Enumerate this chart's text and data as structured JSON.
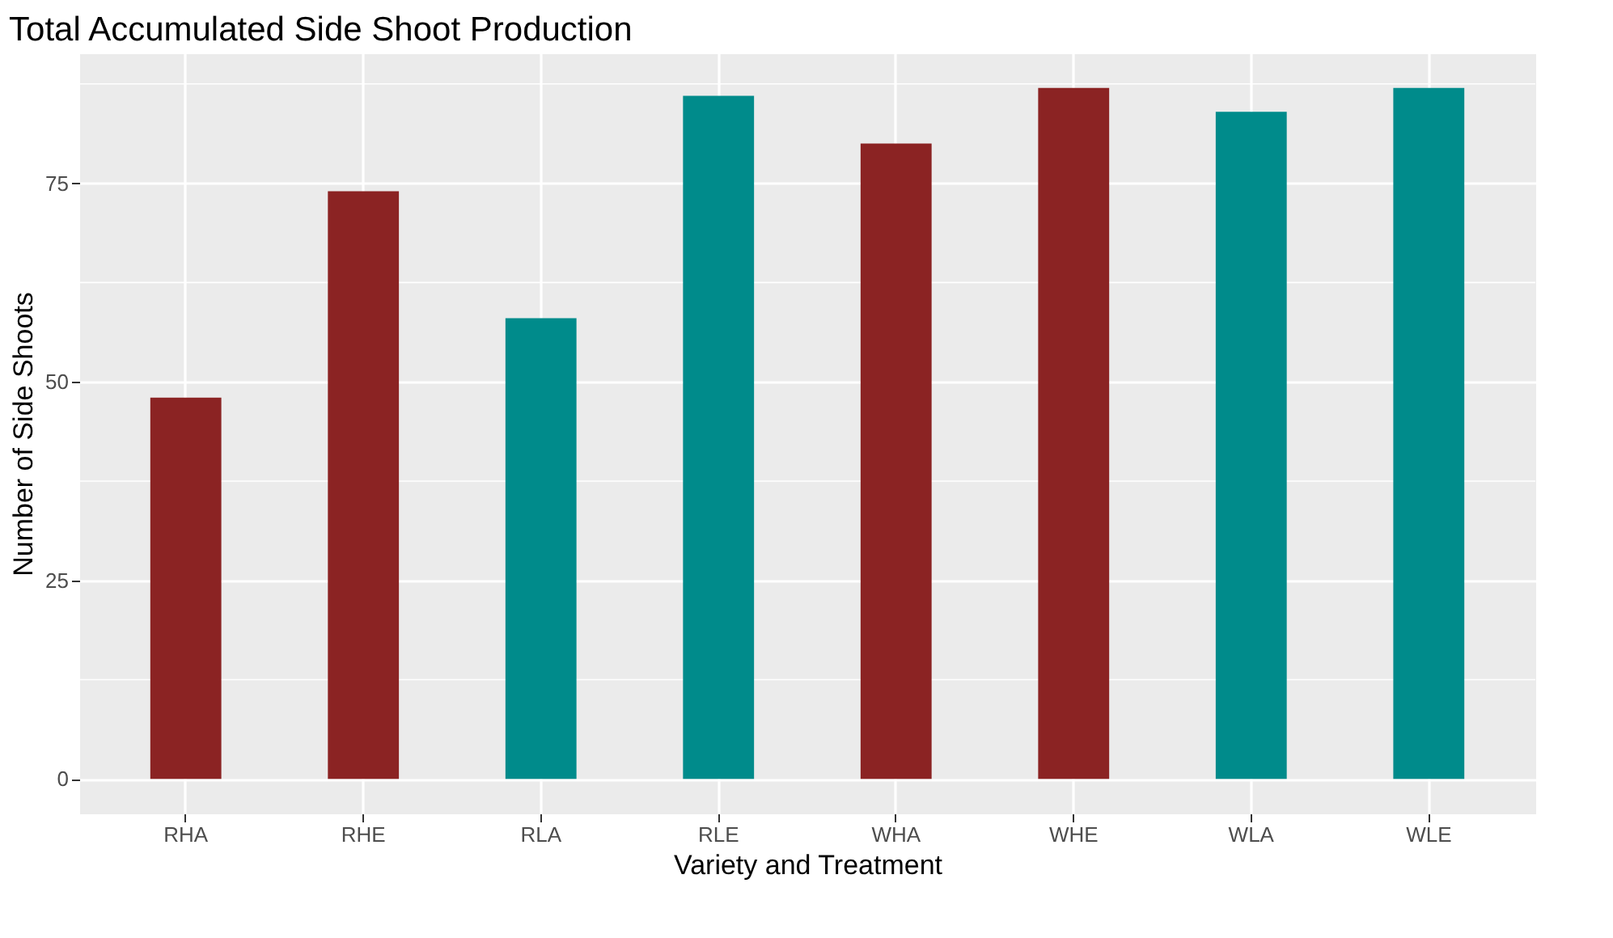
{
  "chart_data": {
    "type": "bar",
    "title": "Total Accumulated Side Shoot Production",
    "xlabel": "Variety and Treatment",
    "ylabel": "Number of Side Shoots",
    "categories": [
      "RHA",
      "RHE",
      "RLA",
      "RLE",
      "WHA",
      "WHE",
      "WLA",
      "WLE"
    ],
    "values": [
      48,
      74,
      58,
      86,
      80,
      87,
      84,
      87
    ],
    "colors": [
      "#8b2323",
      "#8b2323",
      "#008b8b",
      "#008b8b",
      "#8b2323",
      "#8b2323",
      "#008b8b",
      "#008b8b"
    ],
    "ylim": [
      -4.35,
      91.35
    ],
    "yticks": [
      0,
      25,
      50,
      75
    ],
    "grid": true
  }
}
